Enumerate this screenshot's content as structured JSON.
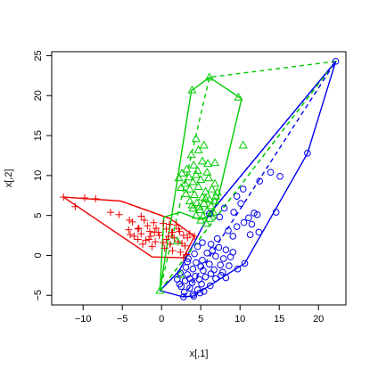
{
  "chart_data": {
    "type": "scatter",
    "title": "",
    "xlabel": "x[,1]",
    "ylabel": "x[,2]",
    "xlim": [
      -14,
      23.5
    ],
    "ylim": [
      -6.2,
      25.5
    ],
    "xticks": [
      -10,
      -5,
      0,
      5,
      10,
      15,
      20
    ],
    "yticks": [
      -5,
      0,
      5,
      10,
      15,
      20,
      25
    ],
    "grid": false,
    "legend": "none",
    "series": [
      {
        "marker": "plus",
        "color": "#ee0000",
        "points": [
          [
            -12.5,
            7.3
          ],
          [
            -11,
            6.1
          ],
          [
            -9.8,
            7.2
          ],
          [
            -8.4,
            7.1
          ],
          [
            -6.5,
            5.4
          ],
          [
            -5.4,
            5.1
          ],
          [
            -4.1,
            4.4
          ],
          [
            -4.2,
            3.2
          ],
          [
            -3.7,
            4.2
          ],
          [
            -3,
            3.3
          ],
          [
            -2.6,
            4.9
          ],
          [
            -2.2,
            4.4
          ],
          [
            -1.8,
            3.7
          ],
          [
            -1.5,
            3.0
          ],
          [
            -1.0,
            4.1
          ],
          [
            -0.7,
            3.4
          ],
          [
            -0.4,
            2.9
          ],
          [
            0.2,
            4.0
          ],
          [
            0.6,
            3.3
          ],
          [
            1.0,
            3.9
          ],
          [
            1.4,
            2.9
          ],
          [
            1.9,
            3.8
          ],
          [
            2.3,
            3.0
          ],
          [
            2.8,
            2.5
          ],
          [
            3.3,
            2.2
          ],
          [
            -4,
            2.6
          ],
          [
            -3.5,
            2.4
          ],
          [
            -3.0,
            2.0
          ],
          [
            -2.6,
            2.7
          ],
          [
            -2.0,
            1.9
          ],
          [
            -1.4,
            2.4
          ],
          [
            -0.8,
            1.7
          ],
          [
            -0.3,
            2.5
          ],
          [
            0.2,
            1.6
          ],
          [
            0.6,
            2.0
          ],
          [
            1.1,
            1.4
          ],
          [
            1.6,
            2.2
          ],
          [
            2.1,
            1.7
          ],
          [
            2.6,
            1.5
          ],
          [
            3.0,
            1.2
          ],
          [
            3.6,
            2.7
          ],
          [
            4.2,
            2.4
          ],
          [
            -2.4,
            1.4
          ],
          [
            -1.2,
            1.1
          ],
          [
            0.4,
            0.9
          ],
          [
            1.4,
            0.6
          ],
          [
            2.4,
            0.4
          ],
          [
            2.8,
            -0.3
          ],
          [
            3.2,
            0.1
          ],
          [
            -2.9,
            3.4
          ],
          [
            -0.9,
            2.9
          ],
          [
            1.3,
            2.9
          ],
          [
            2.2,
            3.3
          ],
          [
            0.9,
            2.4
          ],
          [
            -1.6,
            2.0
          ]
        ],
        "hull": [
          [
            -12.5,
            7.3
          ],
          [
            -5.2,
            6.8
          ],
          [
            1.1,
            4.6
          ],
          [
            4.2,
            2.4
          ],
          [
            2.8,
            -0.3
          ],
          [
            -1.2,
            -0.2
          ],
          [
            -12.5,
            7.3
          ]
        ]
      },
      {
        "marker": "triangle",
        "color": "#00cc00",
        "points": [
          [
            6.1,
            22.3
          ],
          [
            3.9,
            20.7
          ],
          [
            9.8,
            19.8
          ],
          [
            4.4,
            14.6
          ],
          [
            5.4,
            13.8
          ],
          [
            4.7,
            13.2
          ],
          [
            3.8,
            12.6
          ],
          [
            5.2,
            11.8
          ],
          [
            4.1,
            11.3
          ],
          [
            5.9,
            11.5
          ],
          [
            6.8,
            11.6
          ],
          [
            3.2,
            10.8
          ],
          [
            4.6,
            10.6
          ],
          [
            3.5,
            9.8
          ],
          [
            2.6,
            10.3
          ],
          [
            2.2,
            9.7
          ],
          [
            3.0,
            9.0
          ],
          [
            4.0,
            9.2
          ],
          [
            5.0,
            9.5
          ],
          [
            6.0,
            9.7
          ],
          [
            6.8,
            9.0
          ],
          [
            2.5,
            8.5
          ],
          [
            3.6,
            8.3
          ],
          [
            4.7,
            8.6
          ],
          [
            5.6,
            8.0
          ],
          [
            6.4,
            8.3
          ],
          [
            7.1,
            7.9
          ],
          [
            3.1,
            7.7
          ],
          [
            4.2,
            7.6
          ],
          [
            5.2,
            7.3
          ],
          [
            6.1,
            7.0
          ],
          [
            6.8,
            6.8
          ],
          [
            3.6,
            6.8
          ],
          [
            4.5,
            6.6
          ],
          [
            5.4,
            6.5
          ],
          [
            6.3,
            6.2
          ],
          [
            4.0,
            5.9
          ],
          [
            4.9,
            5.7
          ],
          [
            5.8,
            5.6
          ],
          [
            6.6,
            5.4
          ],
          [
            4.4,
            5.0
          ],
          [
            5.3,
            4.9
          ],
          [
            6.1,
            4.6
          ],
          [
            5.0,
            4.4
          ],
          [
            5.7,
            4.0
          ],
          [
            6.3,
            5.2
          ],
          [
            4.8,
            6.1
          ],
          [
            3.9,
            6.3
          ],
          [
            5.6,
            7.1
          ],
          [
            6.9,
            7.4
          ],
          [
            10.4,
            13.8
          ],
          [
            2.0,
            1.8
          ],
          [
            2.4,
            -2.4
          ],
          [
            -0.2,
            -4.4
          ],
          [
            4.4,
            10.1
          ],
          [
            5.8,
            10.4
          ]
        ],
        "hull": [
          [
            6.1,
            22.3
          ],
          [
            10.2,
            19.6
          ],
          [
            7.2,
            7.2
          ],
          [
            6.4,
            5.0
          ],
          [
            4.8,
            4.5
          ],
          [
            2.4,
            5.4
          ],
          [
            0.3,
            4.8
          ],
          [
            -0.2,
            -4.4
          ],
          [
            3.8,
            20.6
          ],
          [
            6.1,
            22.3
          ]
        ]
      },
      {
        "marker": "circle",
        "color": "#0000ee",
        "points": [
          [
            22.2,
            24.3
          ],
          [
            18.6,
            12.8
          ],
          [
            13.9,
            10.4
          ],
          [
            15.1,
            9.9
          ],
          [
            12.5,
            9.3
          ],
          [
            10.4,
            8.3
          ],
          [
            9.6,
            7.4
          ],
          [
            10.1,
            6.5
          ],
          [
            8.0,
            5.9
          ],
          [
            9.2,
            5.4
          ],
          [
            6.1,
            5.2
          ],
          [
            7.4,
            4.8
          ],
          [
            11.1,
            4.7
          ],
          [
            11.8,
            5.3
          ],
          [
            12.2,
            5.1
          ],
          [
            14.6,
            5.4
          ],
          [
            10.5,
            4.1
          ],
          [
            11.5,
            3.9
          ],
          [
            9.6,
            3.6
          ],
          [
            8.5,
            3.1
          ],
          [
            11.3,
            2.6
          ],
          [
            12.4,
            2.9
          ],
          [
            9.1,
            2.4
          ],
          [
            7.1,
            2.1
          ],
          [
            5.2,
            1.6
          ],
          [
            6.3,
            1.4
          ],
          [
            4.6,
            1.1
          ],
          [
            7.3,
            1.0
          ],
          [
            8.2,
            0.7
          ],
          [
            9.1,
            0.4
          ],
          [
            5.8,
            0.3
          ],
          [
            4.2,
            0.2
          ],
          [
            6.9,
            -0.1
          ],
          [
            5.2,
            -0.6
          ],
          [
            3.4,
            -0.4
          ],
          [
            4.4,
            -0.9
          ],
          [
            6.1,
            -1.1
          ],
          [
            7.5,
            -1.2
          ],
          [
            8.6,
            -1.3
          ],
          [
            10.6,
            -1.0
          ],
          [
            3.1,
            -1.5
          ],
          [
            4.0,
            -1.7
          ],
          [
            5.3,
            -1.9
          ],
          [
            6.7,
            -1.8
          ],
          [
            7.8,
            -2.1
          ],
          [
            2.4,
            -2.2
          ],
          [
            3.3,
            -2.4
          ],
          [
            4.3,
            -2.6
          ],
          [
            5.6,
            -2.7
          ],
          [
            6.9,
            -2.9
          ],
          [
            8.2,
            -2.8
          ],
          [
            2.0,
            -3.0
          ],
          [
            3.0,
            -3.2
          ],
          [
            3.9,
            -3.4
          ],
          [
            5.1,
            -3.6
          ],
          [
            6.2,
            -3.8
          ],
          [
            2.5,
            -3.9
          ],
          [
            3.6,
            -4.1
          ],
          [
            4.6,
            -4.3
          ],
          [
            5.4,
            -4.5
          ],
          [
            2.9,
            -4.6
          ],
          [
            4.0,
            -4.9
          ],
          [
            4.9,
            -4.7
          ],
          [
            2.8,
            -5.2
          ],
          [
            4.1,
            -5.1
          ],
          [
            7.6,
            -2.5
          ],
          [
            6.3,
            -2.3
          ],
          [
            5.0,
            -1.4
          ],
          [
            3.6,
            -2.9
          ],
          [
            2.3,
            -3.6
          ],
          [
            6.5,
            0.6
          ],
          [
            7.9,
            -0.4
          ],
          [
            4.8,
            -3.0
          ],
          [
            3.3,
            -0.8
          ],
          [
            8.8,
            -0.2
          ],
          [
            9.7,
            -1.7
          ]
        ],
        "hull": [
          [
            22.2,
            24.3
          ],
          [
            18.6,
            12.8
          ],
          [
            10.6,
            -1.0
          ],
          [
            4.0,
            -5.1
          ],
          [
            2.8,
            -5.2
          ],
          [
            -0.2,
            -4.4
          ],
          [
            2.2,
            -2.0
          ],
          [
            6.1,
            5.2
          ],
          [
            22.2,
            24.3
          ]
        ]
      }
    ],
    "overall_hull": [
      [
        -0.2,
        -4.4
      ],
      [
        22.2,
        24.3
      ],
      [
        6.1,
        22.3
      ],
      [
        -0.2,
        -4.4
      ]
    ],
    "overall_hull_color": "#00cc00",
    "overall_hull_secondary": [
      [
        -0.2,
        -4.4
      ],
      [
        22.2,
        24.3
      ]
    ],
    "overall_hull_secondary_color": "#0000ee"
  }
}
